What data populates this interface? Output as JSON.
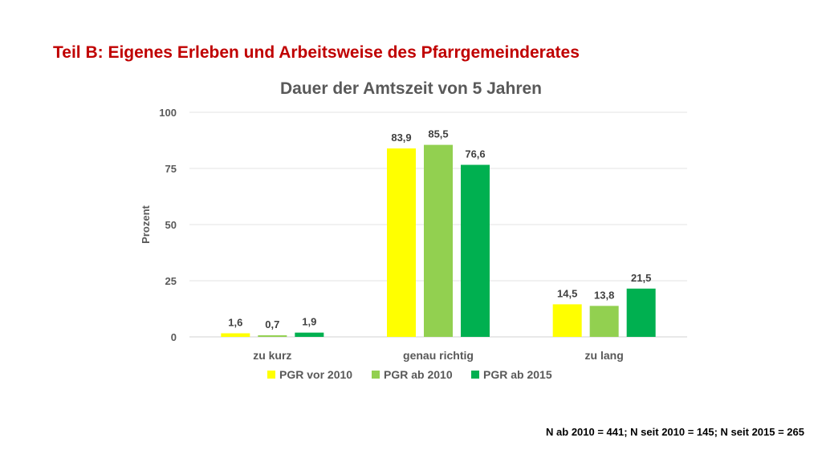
{
  "slide_title": "Teil B: Eigenes Erleben und Arbeitsweise des Pfarrgemeinderates",
  "footnote": "N ab 2010 = 441; N seit 2010 = 145; N seit 2015 = 265",
  "colors": {
    "title": "#c00000",
    "series": [
      "#ffff00",
      "#92d050",
      "#00b050"
    ]
  },
  "chart_data": {
    "type": "bar",
    "title": "Dauer der Amtszeit von 5 Jahren",
    "xlabel": "",
    "ylabel": "Prozent",
    "ylim": [
      0,
      100
    ],
    "yticks": [
      0,
      25,
      50,
      75,
      100
    ],
    "grid": true,
    "legend_position": "bottom",
    "categories": [
      "zu kurz",
      "genau richtig",
      "zu lang"
    ],
    "series": [
      {
        "name": "PGR vor 2010",
        "values": [
          1.6,
          83.9,
          14.5
        ],
        "labels": [
          "1,6",
          "83,9",
          "14,5"
        ]
      },
      {
        "name": "PGR ab 2010",
        "values": [
          0.7,
          85.5,
          13.8
        ],
        "labels": [
          "0,7",
          "85,5",
          "13,8"
        ]
      },
      {
        "name": "PGR ab 2015",
        "values": [
          1.9,
          76.6,
          21.5
        ],
        "labels": [
          "1,9",
          "76,6",
          "21,5"
        ]
      }
    ]
  }
}
